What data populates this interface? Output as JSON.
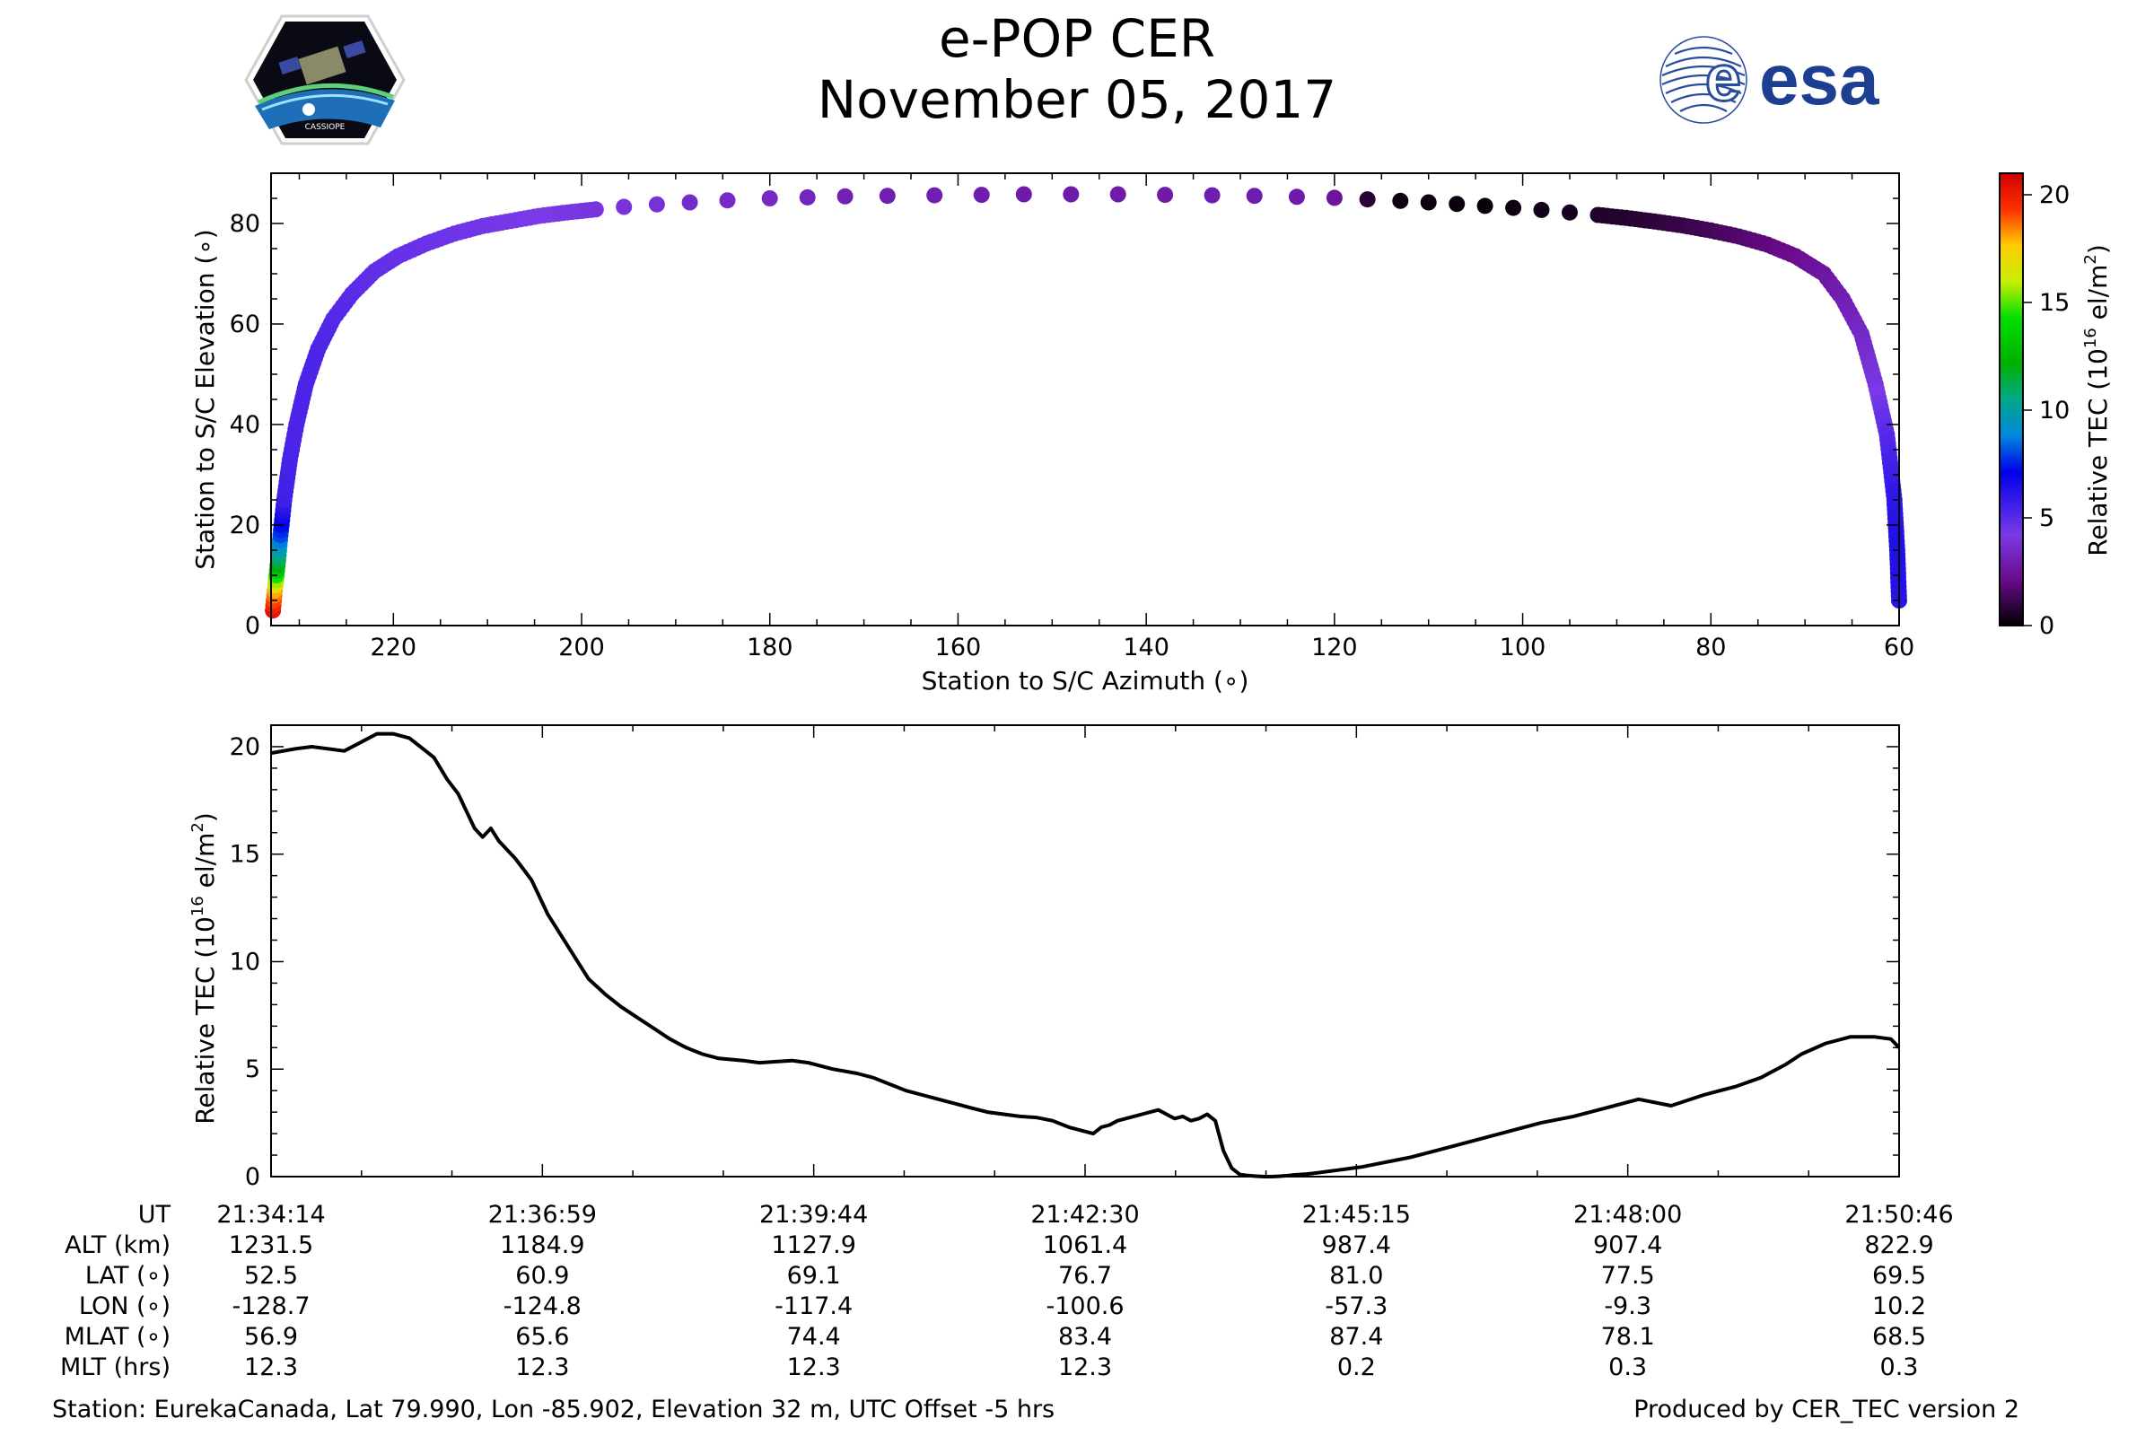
{
  "header": {
    "title": "e-POP CER",
    "date": "November 05, 2017",
    "left_logo": "CASSIOPE",
    "right_logo": "esa"
  },
  "colorbar": {
    "label_main": "Relative TEC (10",
    "label_exp": "16",
    "label_tail": " el/m",
    "label_sq": "2",
    "label_close": ")",
    "ticks": [
      "0",
      "5",
      "10",
      "15",
      "20"
    ],
    "colormap": "nipy_spectral"
  },
  "chart_data": [
    {
      "type": "scatter",
      "title": "",
      "xlabel": "Station to S/C Azimuth (∘)",
      "ylabel": "Station to S/C Elevation (∘)",
      "xlim": [
        233,
        60
      ],
      "ylim": [
        0,
        90
      ],
      "xticks": [
        220,
        200,
        180,
        160,
        140,
        120,
        100,
        80,
        60
      ],
      "yticks": [
        0,
        20,
        40,
        60,
        80
      ],
      "color_by": "Relative TEC",
      "clim": [
        0,
        21
      ],
      "x": [
        232.8,
        232.6,
        232.3,
        232.0,
        231.6,
        231.0,
        230.3,
        229.3,
        228.0,
        226.4,
        224.4,
        222.0,
        219.5,
        216.5,
        213.5,
        210.5,
        207.5,
        204.5,
        201.5,
        198.5,
        195.5,
        192.0,
        188.5,
        184.5,
        180.0,
        176.0,
        172.0,
        167.5,
        162.5,
        157.5,
        153.0,
        148.0,
        143.0,
        138.0,
        133.0,
        128.5,
        124.0,
        120.0,
        116.5,
        113.0,
        110.0,
        107.0,
        104.0,
        101.0,
        98.0,
        95.0,
        92.0,
        89.0,
        86.0,
        83.0,
        80.0,
        77.0,
        74.0,
        71.0,
        68.0,
        66.0,
        64.0,
        62.5,
        61.3,
        60.5,
        60.2,
        60.0
      ],
      "y": [
        3.0,
        7.0,
        12.0,
        18.0,
        25.0,
        33.0,
        40.0,
        48.0,
        55.0,
        61.0,
        66.0,
        70.5,
        73.5,
        76.0,
        78.0,
        79.5,
        80.5,
        81.5,
        82.2,
        82.8,
        83.3,
        83.8,
        84.2,
        84.6,
        85.0,
        85.2,
        85.4,
        85.5,
        85.6,
        85.7,
        85.8,
        85.8,
        85.8,
        85.7,
        85.6,
        85.5,
        85.3,
        85.1,
        84.8,
        84.5,
        84.2,
        83.9,
        83.5,
        83.1,
        82.7,
        82.2,
        81.7,
        81.1,
        80.4,
        79.6,
        78.6,
        77.4,
        75.8,
        73.5,
        70.0,
        65.0,
        58.0,
        48.0,
        38.0,
        25.0,
        15.0,
        5.0
      ],
      "tec": [
        20.3,
        18.0,
        12.0,
        8.0,
        5.6,
        5.4,
        5.3,
        5.3,
        5.3,
        5.1,
        5.0,
        4.8,
        4.7,
        4.6,
        4.5,
        4.4,
        4.3,
        4.2,
        4.1,
        4.0,
        3.9,
        3.8,
        3.6,
        3.5,
        3.4,
        3.3,
        3.1,
        3.0,
        3.0,
        2.9,
        2.8,
        2.8,
        2.8,
        2.8,
        2.9,
        2.9,
        2.8,
        2.5,
        0.8,
        0.3,
        0.2,
        0.2,
        0.2,
        0.3,
        0.4,
        0.5,
        0.6,
        0.7,
        0.9,
        1.1,
        1.3,
        1.6,
        1.9,
        2.2,
        2.6,
        3.0,
        3.4,
        4.0,
        5.0,
        6.0,
        6.4,
        6.2
      ]
    },
    {
      "type": "line",
      "title": "",
      "xlabel": "",
      "ylabel_main": "Relative TEC (10",
      "ylabel_exp": "16",
      "ylabel_tail": " el/m",
      "ylabel_sq": "2",
      "ylabel_close": ")",
      "ylim": [
        0,
        21
      ],
      "yticks": [
        0,
        5,
        10,
        15,
        20
      ],
      "xlim": [
        0,
        1000
      ],
      "series": [
        {
          "name": "Relative TEC",
          "x": [
            0,
            15,
            25,
            35,
            45,
            55,
            65,
            75,
            85,
            95,
            100,
            104,
            108,
            115,
            120,
            125,
            130,
            135,
            140,
            145,
            150,
            155,
            160,
            165,
            170,
            175,
            180,
            185,
            190,
            195,
            205,
            215,
            225,
            235,
            245,
            255,
            265,
            275,
            290,
            300,
            310,
            320,
            330,
            345,
            360,
            370,
            380,
            390,
            395,
            400,
            410,
            420,
            430,
            440,
            450,
            460,
            470,
            480,
            490,
            500,
            505,
            510,
            515,
            520,
            525,
            530,
            535,
            540,
            545,
            550,
            555,
            560,
            565,
            570,
            575,
            580,
            585,
            590,
            595,
            600,
            605,
            610,
            615,
            620,
            625,
            628,
            632,
            636,
            640,
            645,
            650,
            655,
            660,
            665,
            670,
            680,
            690,
            700,
            720,
            740,
            760,
            780,
            800,
            820,
            840,
            860,
            880,
            900,
            915,
            930,
            940,
            955,
            970,
            985,
            995,
            1000
          ],
          "values": [
            19.7,
            19.9,
            20.0,
            19.9,
            19.8,
            20.2,
            20.6,
            20.6,
            20.4,
            19.8,
            19.5,
            19.0,
            18.5,
            17.8,
            17.0,
            16.2,
            15.8,
            16.2,
            15.6,
            15.2,
            14.8,
            14.3,
            13.8,
            13.0,
            12.2,
            11.6,
            11.0,
            10.4,
            9.8,
            9.2,
            8.5,
            7.9,
            7.4,
            6.9,
            6.4,
            6.0,
            5.7,
            5.5,
            5.4,
            5.3,
            5.35,
            5.4,
            5.3,
            5.0,
            4.8,
            4.6,
            4.3,
            4.0,
            3.9,
            3.8,
            3.6,
            3.4,
            3.2,
            3.0,
            2.9,
            2.8,
            2.75,
            2.6,
            2.3,
            2.1,
            2.0,
            2.3,
            2.4,
            2.6,
            2.7,
            2.8,
            2.9,
            3.0,
            3.1,
            2.9,
            2.7,
            2.8,
            2.6,
            2.7,
            2.9,
            2.6,
            1.2,
            0.4,
            0.1,
            0.05,
            0.02,
            0.0,
            0.0,
            0.02,
            0.05,
            0.08,
            0.1,
            0.12,
            0.15,
            0.2,
            0.25,
            0.3,
            0.35,
            0.4,
            0.45,
            0.6,
            0.75,
            0.9,
            1.3,
            1.7,
            2.1,
            2.5,
            2.8,
            3.2,
            3.6,
            3.3,
            3.8,
            4.2,
            4.6,
            5.2,
            5.7,
            6.2,
            6.5,
            6.5,
            6.4,
            6.0
          ]
        }
      ]
    }
  ],
  "table": {
    "row_labels": [
      "UT",
      "ALT (km)",
      "LAT (∘)",
      "LON (∘)",
      "MLAT (∘)",
      "MLT (hrs)"
    ],
    "columns": [
      [
        "21:34:14",
        "1231.5",
        "52.5",
        "-128.7",
        "56.9",
        "12.3"
      ],
      [
        "21:36:59",
        "1184.9",
        "60.9",
        "-124.8",
        "65.6",
        "12.3"
      ],
      [
        "21:39:44",
        "1127.9",
        "69.1",
        "-117.4",
        "74.4",
        "12.3"
      ],
      [
        "21:42:30",
        "1061.4",
        "76.7",
        "-100.6",
        "83.4",
        "12.3"
      ],
      [
        "21:45:15",
        "987.4",
        "81.0",
        "-57.3",
        "87.4",
        "0.2"
      ],
      [
        "21:48:00",
        "907.4",
        "77.5",
        "-9.3",
        "78.1",
        "0.3"
      ],
      [
        "21:50:46",
        "822.9",
        "69.5",
        "10.2",
        "68.5",
        "0.3"
      ]
    ]
  },
  "footer": {
    "station": "Station: EurekaCanada, Lat 79.990, Lon -85.902, Elevation 32 m, UTC Offset -5 hrs",
    "produced": "Produced by CER_TEC version 2"
  }
}
